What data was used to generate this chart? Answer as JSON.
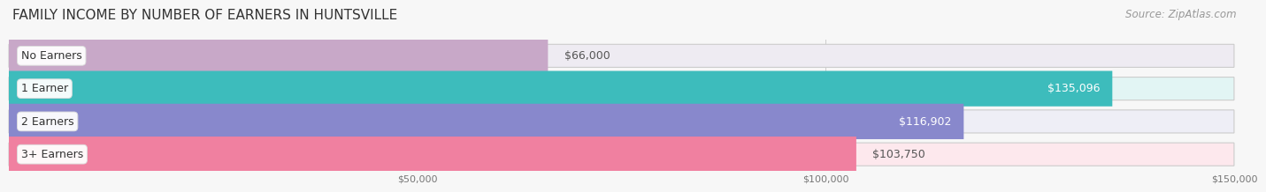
{
  "title": "FAMILY INCOME BY NUMBER OF EARNERS IN HUNTSVILLE",
  "source": "Source: ZipAtlas.com",
  "categories": [
    "No Earners",
    "1 Earner",
    "2 Earners",
    "3+ Earners"
  ],
  "values": [
    66000,
    135096,
    116902,
    103750
  ],
  "bar_colors": [
    "#c8a8c8",
    "#3dbcbc",
    "#8888cc",
    "#f080a0"
  ],
  "bar_bg_colors": [
    "#eeebf2",
    "#e2f5f4",
    "#eeeeF6",
    "#fde8ed"
  ],
  "bar_border_color": "#cccccc",
  "value_labels": [
    "$66,000",
    "$135,096",
    "$116,902",
    "$103,750"
  ],
  "value_label_inside": [
    false,
    true,
    true,
    false
  ],
  "value_label_color_inside": "#ffffff",
  "value_label_color_outside": "#555555",
  "xlim_data": [
    0,
    150000
  ],
  "x_axis_start": 0,
  "xticks": [
    50000,
    100000,
    150000
  ],
  "xtick_labels": [
    "$50,000",
    "$100,000",
    "$150,000"
  ],
  "title_fontsize": 11,
  "source_fontsize": 8.5,
  "bar_height": 0.58,
  "label_fontsize": 9,
  "value_fontsize": 9,
  "bg_color": "#f7f7f7",
  "bar_row_bg": "#f0f0f0"
}
